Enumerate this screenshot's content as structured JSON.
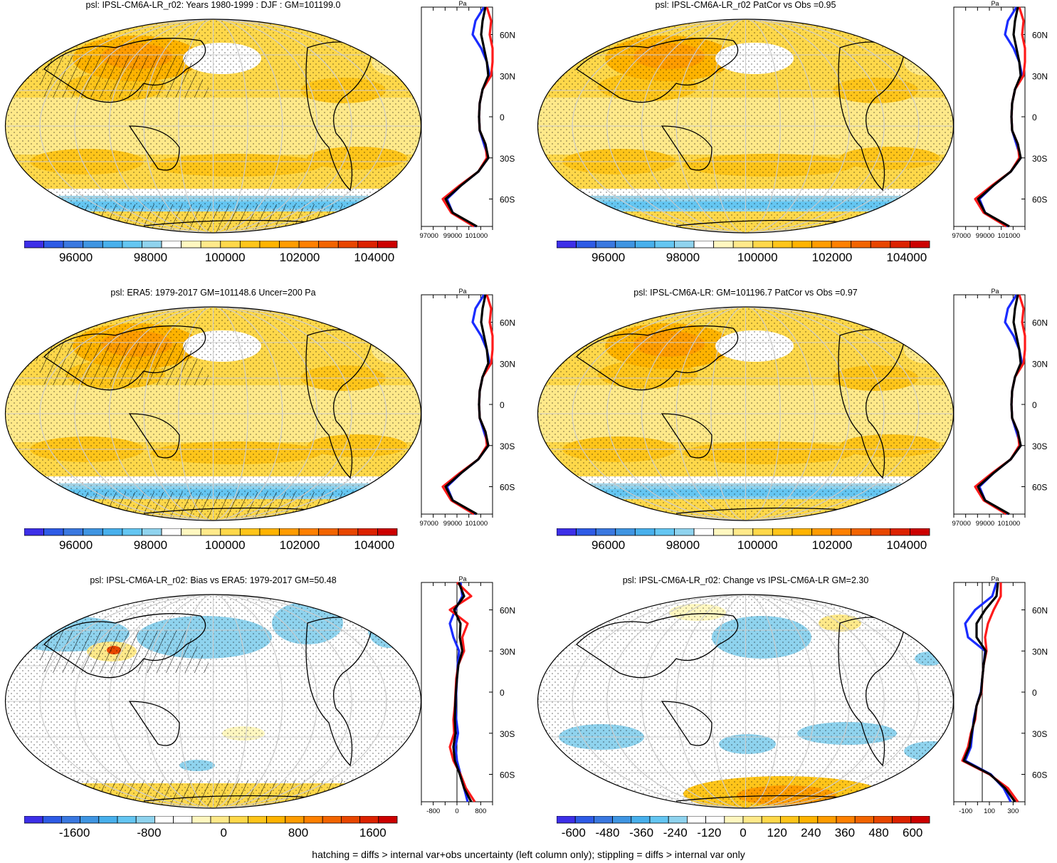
{
  "footer": "hatching = diffs > internal var+obs uncertainty (left column only); stippling = diffs > internal var only",
  "profile_unit": "Pa",
  "lat_ticks": [
    "60N",
    "30N",
    "0",
    "30S",
    "60S"
  ],
  "colors": {
    "abs_scale": [
      "#3d2fe8",
      "#2e5be6",
      "#3a78e0",
      "#3f95e2",
      "#48b0ec",
      "#64c6f2",
      "#8fd3ee",
      "#ffffff",
      "#fff7c0",
      "#ffe98a",
      "#ffd84a",
      "#ffc51a",
      "#ffb300",
      "#ff9c00",
      "#ff8000",
      "#f26400",
      "#e84600",
      "#dc2200",
      "#cc0000"
    ],
    "blue_line": "#1a2cff",
    "red_line": "#ff1a1a",
    "black_line": "#000000"
  },
  "panels": [
    {
      "title": "psl: IPSL-CM6A-LR_r02: Years 1980-1999 : DJF : GM=101199.0",
      "colorbar_labels": [
        "96000",
        "98000",
        "100000",
        "102000",
        "104000"
      ],
      "profile_ticks": [
        "97000",
        "99000",
        "101000"
      ],
      "kind": "abs",
      "hatch": true
    },
    {
      "title": "psl: IPSL-CM6A-LR_r02 PatCor vs Obs =0.95",
      "colorbar_labels": [
        "96000",
        "98000",
        "100000",
        "102000",
        "104000"
      ],
      "profile_ticks": [
        "97000",
        "99000",
        "101000"
      ],
      "kind": "abs",
      "hatch": false
    },
    {
      "title": "psl: ERA5: 1979-2017 GM=101148.6 Uncer=200 Pa",
      "colorbar_labels": [
        "96000",
        "98000",
        "100000",
        "102000",
        "104000"
      ],
      "profile_ticks": [
        "97000",
        "99000",
        "101000"
      ],
      "kind": "abs",
      "hatch": true
    },
    {
      "title": "psl: IPSL-CM6A-LR: GM=101196.7 PatCor vs Obs =0.97",
      "colorbar_labels": [
        "96000",
        "98000",
        "100000",
        "102000",
        "104000"
      ],
      "profile_ticks": [
        "97000",
        "99000",
        "101000"
      ],
      "kind": "abs",
      "hatch": false
    },
    {
      "title": "psl: IPSL-CM6A-LR_r02: Bias vs ERA5: 1979-2017 GM=50.48",
      "colorbar_labels": [
        "-1600",
        "-800",
        "0",
        "800",
        "1600"
      ],
      "profile_ticks": [
        "-800",
        "0",
        "800"
      ],
      "kind": "bias",
      "hatch": true
    },
    {
      "title": "psl: IPSL-CM6A-LR_r02: Change vs IPSL-CM6A-LR GM=2.30",
      "colorbar_labels": [
        "-600",
        "-480",
        "-360",
        "-240",
        "-120",
        "0",
        "120",
        "240",
        "360",
        "480",
        "600"
      ],
      "profile_ticks": [
        "-100",
        "100",
        "300"
      ],
      "kind": "change",
      "hatch": false
    }
  ],
  "chart_data": [
    {
      "type": "heatmap",
      "title": "psl: IPSL-CM6A-LR_r02: Years 1980-1999 : DJF : GM=101199.0",
      "colorbar": {
        "ticks": [
          96000,
          98000,
          100000,
          102000,
          104000
        ]
      }
    },
    {
      "type": "line",
      "ylabel": "Pa",
      "xlim": [
        97000,
        102000
      ],
      "y_ticks": [
        "60N",
        "30N",
        "0",
        "30S",
        "60S"
      ],
      "lat": [
        80,
        70,
        60,
        50,
        40,
        30,
        20,
        10,
        0,
        -10,
        -20,
        -30,
        -40,
        -50,
        -60,
        -70,
        -80
      ],
      "series": [
        {
          "values": [
            101400,
            100800,
            100600,
            101200,
            101600,
            101800,
            101300,
            101100,
            101050,
            101100,
            101400,
            101700,
            101000,
            99800,
            98800,
            99200,
            100800
          ]
        },
        {
          "values": [
            101600,
            101900,
            101800,
            102000,
            102100,
            101900,
            101300,
            101100,
            101050,
            101100,
            101500,
            101600,
            101000,
            99700,
            98500,
            99100,
            100700
          ]
        },
        {
          "values": [
            101500,
            101300,
            101200,
            101400,
            101600,
            101700,
            101300,
            101100,
            101050,
            101100,
            101500,
            101700,
            101000,
            99800,
            98700,
            99200,
            100900
          ]
        }
      ]
    },
    {
      "type": "heatmap",
      "title": "psl: IPSL-CM6A-LR_r02 PatCor vs Obs =0.95",
      "colorbar": {
        "ticks": [
          96000,
          98000,
          100000,
          102000,
          104000
        ]
      }
    },
    {
      "type": "heatmap",
      "title": "psl: ERA5: 1979-2017 GM=101148.6 Uncer=200 Pa",
      "colorbar": {
        "ticks": [
          96000,
          98000,
          100000,
          102000,
          104000
        ]
      }
    },
    {
      "type": "heatmap",
      "title": "psl: IPSL-CM6A-LR: GM=101196.7 PatCor vs Obs =0.97",
      "colorbar": {
        "ticks": [
          96000,
          98000,
          100000,
          102000,
          104000
        ]
      }
    },
    {
      "type": "heatmap",
      "title": "psl: IPSL-CM6A-LR_r02: Bias vs ERA5: 1979-2017 GM=50.48",
      "colorbar": {
        "ticks": [
          -1600,
          -800,
          0,
          800,
          1600
        ]
      }
    },
    {
      "type": "line",
      "ylabel": "Pa",
      "xlim": [
        -1000,
        1000
      ],
      "x_ticks": [
        -800,
        0,
        800
      ],
      "lat": [
        80,
        70,
        60,
        50,
        40,
        30,
        20,
        10,
        0,
        -10,
        -20,
        -30,
        -40,
        -50,
        -60,
        -70,
        -80
      ],
      "series": [
        {
          "values": [
            100,
            150,
            -50,
            -200,
            -100,
            60,
            20,
            0,
            -20,
            -40,
            -20,
            30,
            -40,
            0,
            100,
            200,
            300
          ]
        },
        {
          "values": [
            0,
            400,
            -200,
            300,
            150,
            200,
            40,
            -20,
            -40,
            -60,
            -100,
            -80,
            -200,
            -100,
            100,
            250,
            500
          ]
        },
        {
          "values": [
            50,
            200,
            -80,
            100,
            80,
            150,
            40,
            0,
            -30,
            -50,
            -60,
            -40,
            -100,
            -60,
            80,
            200,
            400
          ]
        }
      ]
    },
    {
      "type": "heatmap",
      "title": "psl: IPSL-CM6A-LR_r02: Change vs IPSL-CM6A-LR GM=2.30",
      "colorbar": {
        "ticks": [
          -600,
          -480,
          -360,
          -240,
          -120,
          0,
          120,
          240,
          360,
          480,
          600
        ]
      }
    },
    {
      "type": "line",
      "ylabel": "Pa",
      "xlim": [
        -200,
        300
      ],
      "x_ticks": [
        -100,
        100,
        300
      ],
      "lat": [
        80,
        70,
        60,
        50,
        40,
        30,
        20,
        10,
        0,
        -10,
        -20,
        -30,
        -40,
        -50,
        -60,
        -70,
        -80
      ],
      "series": [
        {
          "values": [
            100,
            70,
            -50,
            -120,
            -100,
            20,
            10,
            0,
            -10,
            -40,
            -60,
            -70,
            -80,
            -120,
            60,
            150,
            200
          ]
        },
        {
          "values": [
            130,
            130,
            80,
            40,
            20,
            30,
            10,
            0,
            -5,
            -40,
            -50,
            -80,
            -100,
            -140,
            50,
            180,
            250
          ]
        },
        {
          "values": [
            110,
            100,
            20,
            -40,
            -40,
            25,
            10,
            0,
            -8,
            -40,
            -55,
            -75,
            -90,
            -130,
            55,
            160,
            230
          ]
        }
      ]
    }
  ]
}
